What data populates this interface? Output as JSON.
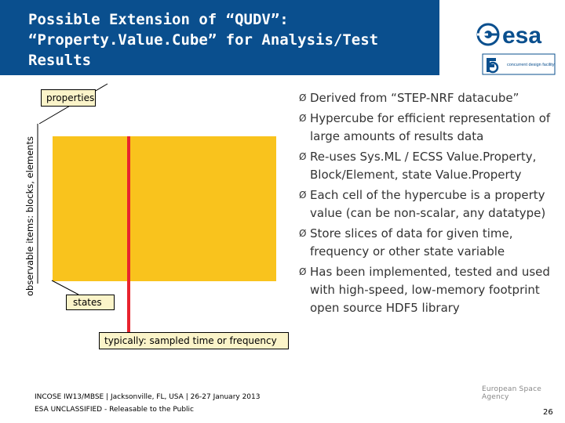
{
  "header": {
    "title_lines": [
      "Possible Extension of “QUDV”:",
      "“Property.Value.Cube” for Analysis/Test",
      "Results"
    ],
    "esa_logo_text": "esa",
    "cdf_logo_text": "concurrent design facility",
    "band_color": "#0a4f8e"
  },
  "diagram": {
    "y_axis_label": "observable items: blocks, elements",
    "properties_label": "properties",
    "states_label": "states",
    "typical_label": "typically: sampled time or frequency",
    "cube_color": "#f9c31d",
    "slice_color": "#e8242e"
  },
  "bullets": [
    "Derived from “STEP-NRF datacube”",
    "Hypercube for efficient representation of large amounts of results data",
    "Re-uses Sys.ML / ECSS Value.Property, Block/Element, state Value.Property",
    "Each cell of the hypercube is a property value (can be non-scalar, any datatype)",
    "Store slices of data for given time, frequency or other state variable",
    "Has been implemented, tested and used with high-speed, low-memory footprint open source HDF5 library"
  ],
  "bullet_marker": "Ø",
  "footer": {
    "conference": "INCOSE IW13/MBSE | Jacksonville, FL, USA | 26-27 January 2013",
    "classification": "ESA UNCLASSIFIED - Releasable to the Public",
    "agency": "European Space Agency",
    "page_number": "26"
  }
}
